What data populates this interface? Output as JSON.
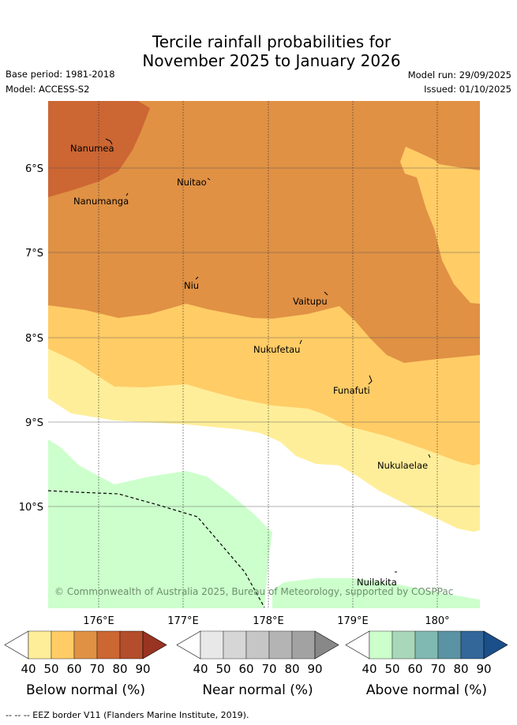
{
  "title": {
    "line1": "Tercile rainfall probabilities for",
    "line2": "November 2025 to January 2026"
  },
  "meta": {
    "base_period": "Base period: 1981-2018",
    "model": "Model: ACCESS-S2",
    "model_run": "Model run: 29/09/2025",
    "issued": "Issued: 01/10/2025"
  },
  "axes": {
    "lon_labels": [
      "176°E",
      "177°E",
      "178°E",
      "179°E",
      "180°"
    ],
    "lat_labels": [
      "6°S",
      "7°S",
      "8°S",
      "9°S",
      "10°S"
    ],
    "lon_range": [
      175.4,
      180.5
    ],
    "lat_range": [
      -5.2,
      -11.2
    ]
  },
  "places": [
    {
      "name": "Nanumea"
    },
    {
      "name": "Nuitao"
    },
    {
      "name": "Nanumanga"
    },
    {
      "name": "Niu"
    },
    {
      "name": "Vaitupu"
    },
    {
      "name": "Nukufetau"
    },
    {
      "name": "Funafuti"
    },
    {
      "name": "Nukulaelae"
    },
    {
      "name": "Nuilakita"
    }
  ],
  "zones": [
    {
      "category": "Below normal",
      "range": "70-80",
      "color": "#cc6633"
    },
    {
      "category": "Below normal",
      "range": "60-70",
      "color": "#e09144"
    },
    {
      "category": "Below normal",
      "range": "50-60",
      "color": "#ffcc66"
    },
    {
      "category": "Below normal",
      "range": "40-50",
      "color": "#ffee99"
    },
    {
      "category": "Neutral",
      "range": "<40",
      "color": "#ffffff"
    },
    {
      "category": "Above normal",
      "range": "40-50",
      "color": "#ccffcc"
    }
  ],
  "copyright": "© Commonwealth of Australia 2025, Bureau of Meteorology, supported by COSPPac",
  "legends": [
    {
      "label": "Below normal (%)",
      "colors": [
        "#ffffff",
        "#ffee99",
        "#ffcc66",
        "#e09144",
        "#cc6633",
        "#b34d2b",
        "#993322"
      ]
    },
    {
      "label": "Near normal (%)",
      "colors": [
        "#ffffff",
        "#e8e8e8",
        "#d6d6d6",
        "#c6c6c6",
        "#b4b4b4",
        "#a2a2a2",
        "#888888"
      ]
    },
    {
      "label": "Above normal (%)",
      "colors": [
        "#ffffff",
        "#ccffcc",
        "#a8d8b9",
        "#80b9b2",
        "#5a93a3",
        "#336699",
        "#1a4f8a"
      ]
    }
  ],
  "legend_ticks": [
    "40",
    "50",
    "60",
    "70",
    "80",
    "90"
  ],
  "footer": "-- -- -- EEZ border V11 (Flanders Marine Institute, 2019)."
}
